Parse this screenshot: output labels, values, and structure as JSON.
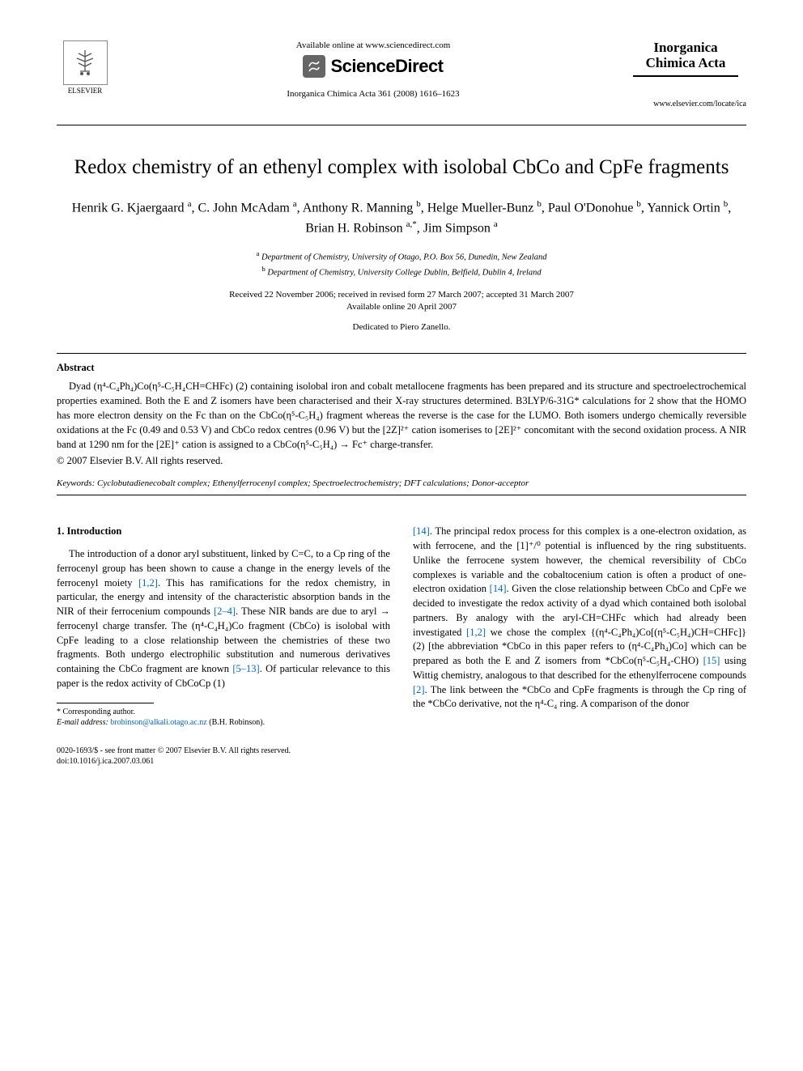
{
  "header": {
    "elsevier_label": "ELSEVIER",
    "available_online": "Available online at www.sciencedirect.com",
    "sciencedirect": "ScienceDirect",
    "journal_citation": "Inorganica Chimica Acta 361 (2008) 1616–1623",
    "journal_name": "Inorganica Chimica Acta",
    "locate_url": "www.elsevier.com/locate/ica"
  },
  "title": "Redox chemistry of an ethenyl complex with isolobal CbCo and CpFe fragments",
  "authors_html": "Henrik G. Kjaergaard <sup>a</sup>, C. John McAdam <sup>a</sup>, Anthony R. Manning <sup>b</sup>, Helge Mueller-Bunz <sup>b</sup>, Paul O'Donohue <sup>b</sup>, Yannick Ortin <sup>b</sup>, Brian H. Robinson <sup>a,*</sup>, Jim Simpson <sup>a</sup>",
  "affiliations": {
    "a": "Department of Chemistry, University of Otago, P.O. Box 56, Dunedin, New Zealand",
    "b": "Department of Chemistry, University College Dublin, Belfield, Dublin 4, Ireland"
  },
  "dates": {
    "line1": "Received 22 November 2006; received in revised form 27 March 2007; accepted 31 March 2007",
    "line2": "Available online 20 April 2007"
  },
  "dedication": "Dedicated to Piero Zanello.",
  "abstract": {
    "label": "Abstract",
    "body": "Dyad (η⁴-C₄Ph₄)Co(η⁵-C₅H₄CH=CHFc) (2) containing isolobal iron and cobalt metallocene fragments has been prepared and its structure and spectroelectrochemical properties examined. Both the E and Z isomers have been characterised and their X-ray structures determined. B3LYP/6-31G* calculations for 2 show that the HOMO has more electron density on the Fc than on the CbCo(η⁵-C₅H₄) fragment whereas the reverse is the case for the LUMO. Both isomers undergo chemically reversible oxidations at the Fc (0.49 and 0.53 V) and CbCo redox centres (0.96 V) but the [2Z]²⁺ cation isomerises to [2E]²⁺ concomitant with the second oxidation process. A NIR band at 1290 nm for the [2E]⁺ cation is assigned to a CbCo(η⁵-C₅H₄) → Fc⁺ charge-transfer.",
    "copyright": "© 2007 Elsevier B.V. All rights reserved."
  },
  "keywords": {
    "label": "Keywords:",
    "text": "Cyclobutadienecobalt complex; Ethenylferrocenyl complex; Spectroelectrochemistry; DFT calculations; Donor-acceptor"
  },
  "section1": {
    "heading": "1. Introduction",
    "col1_html": "The introduction of a donor aryl substituent, linked by C=C, to a Cp ring of the ferrocenyl group has been shown to cause a change in the energy levels of the ferrocenyl moiety <span class=\"ref-link\">[1,2]</span>. This has ramifications for the redox chemistry, in particular, the energy and intensity of the characteristic absorption bands in the NIR of their ferrocenium compounds <span class=\"ref-link\">[2–4]</span>. These NIR bands are due to aryl → ferrocenyl charge transfer. The (η⁴-C₄H₄)Co fragment (CbCo) is isolobal with CpFe leading to a close relationship between the chemistries of these two fragments. Both undergo electrophilic substitution and numerous derivatives containing the CbCo fragment are known <span class=\"ref-link\">[5–13]</span>. Of particular relevance to this paper is the redox activity of CbCoCp (1)",
    "col2_html": "<span class=\"ref-link\">[14]</span>. The principal redox process for this complex is a one-electron oxidation, as with ferrocene, and the [1]⁺/⁰ potential is influenced by the ring substituents. Unlike the ferrocene system however, the chemical reversibility of CbCo complexes is variable and the cobaltocenium cation is often a product of one-electron oxidation <span class=\"ref-link\">[14]</span>. Given the close relationship between CbCo and CpFe we decided to investigate the redox activity of a dyad which contained both isolobal partners. By analogy with the aryl-CH=CHFc which had already been investigated <span class=\"ref-link\">[1,2]</span> we chose the complex {(η⁴-C₄Ph₄)Co[(η⁵-C₅H₄)CH=CHFc]} (2) [the abbreviation *CbCo in this paper refers to (η⁴-C₄Ph₄)Co] which can be prepared as both the E and Z isomers from *CbCo(η⁵-C₅H₄-CHO) <span class=\"ref-link\">[15]</span> using Wittig chemistry, analogous to that described for the ethenylferrocene compounds <span class=\"ref-link\">[2]</span>. The link between the *CbCo and CpFe fragments is through the Cp ring of the *CbCo derivative, not the η⁴-C₄ ring. A comparison of the donor"
  },
  "footnote": {
    "corr": "* Corresponding author.",
    "email_label": "E-mail address:",
    "email": "brobinson@alkali.otago.ac.nz",
    "email_who": "(B.H. Robinson)."
  },
  "footer": {
    "line1": "0020-1693/$ - see front matter © 2007 Elsevier B.V. All rights reserved.",
    "line2": "doi:10.1016/j.ica.2007.03.061"
  },
  "colors": {
    "text": "#000000",
    "link": "#0066cc",
    "background": "#ffffff"
  },
  "fonts": {
    "body_family": "Times New Roman",
    "body_size_pt": 10,
    "title_size_pt": 19,
    "author_size_pt": 12
  }
}
